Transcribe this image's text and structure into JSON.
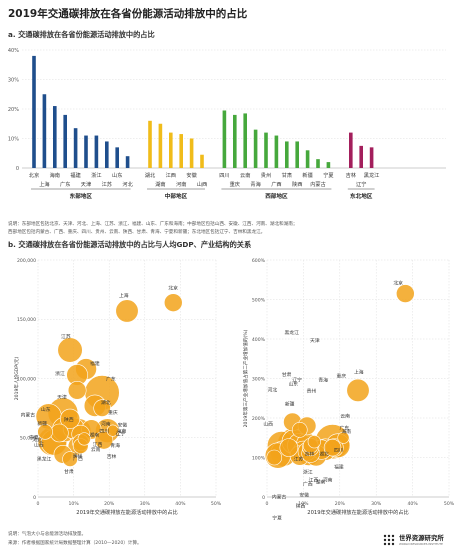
{
  "title": "2019年交通碳排放在各省份能源活动排放中的占比",
  "panel_a": {
    "subtitle": "a. 交通碳排放在各省份能源活动排放中的占比",
    "note_line1": "说明：东部地区包括北京、天津、河北、上海、江苏、浙江、福建、山东、广东和海南；中部地区包括山西、安徽、江西、河南、湖北和湖南；",
    "note_line2": "西部地区包括内蒙古、广西、重庆、四川、贵州、云南、陕西、甘肃、青海、宁夏和新疆；东北地区包括辽宁、吉林和黑龙江。"
  },
  "panel_b": {
    "subtitle": "b. 交通碳排放在各省份能源活动排放中的占比与人均GDP、产业结构的关系"
  },
  "footer": {
    "line1": "说明：气泡大小与总能源活动排放量。",
    "line2": "来源：作者根据国家统计局数据整理计算（2010—2020）计算。"
  },
  "logo": {
    "name": "世界资源研究所",
    "sub": "WORLD RESOURCES INSTITUTE"
  },
  "colors": {
    "east": "#1f4e8c",
    "central": "#f0bc1a",
    "west": "#46a83c",
    "northeast": "#a31f5c",
    "bubble": "#f2a31b",
    "bubble_stroke": "#ffffff",
    "axis": "#9a9a9a",
    "grid": "#dddddd"
  },
  "chart_data": [
    {
      "type": "bar",
      "title": "a. 交通碳排放在各省份能源活动排放中的占比",
      "ylim": [
        0,
        40
      ],
      "yticks": [
        "0",
        "10%",
        "20%",
        "30%",
        "40%"
      ],
      "grid": true,
      "groups": [
        {
          "name": "东部地区",
          "color_key": "east",
          "categories": [
            "北京",
            "上海",
            "海南",
            "广东",
            "福建",
            "天津",
            "浙江",
            "江苏",
            "山东",
            "河北"
          ],
          "values": [
            38,
            25,
            21,
            18,
            13.5,
            11,
            11,
            9,
            7,
            4
          ]
        },
        {
          "name": "中部地区",
          "color_key": "central",
          "categories": [
            "湖北",
            "湖南",
            "江西",
            "河南",
            "安徽",
            "山西"
          ],
          "values": [
            16,
            15,
            12,
            11.5,
            10,
            4.5
          ]
        },
        {
          "name": "西部地区",
          "color_key": "west",
          "categories": [
            "四川",
            "重庆",
            "云南",
            "青海",
            "贵州",
            "广西",
            "甘肃",
            "陕西",
            "新疆",
            "内蒙古",
            "宁夏"
          ],
          "values": [
            19.5,
            18,
            18.5,
            13,
            12,
            11,
            9,
            9,
            6,
            3,
            2
          ]
        },
        {
          "name": "东北地区",
          "color_key": "northeast",
          "categories": [
            "吉林",
            "辽宁",
            "黑龙江"
          ],
          "values": [
            12,
            7.5,
            7
          ]
        }
      ]
    },
    {
      "type": "scatter",
      "xlabel": "2019年交通碳排放在能源活动排放中的占比",
      "ylabel": "2019年人均GDP(元)",
      "xlim": [
        0,
        50
      ],
      "ylim": [
        0,
        200000
      ],
      "xticks": [
        "0",
        "10%",
        "20%",
        "30%",
        "40%",
        "50%"
      ],
      "yticks": [
        "0",
        "50,000",
        "100,000",
        "150,000",
        "200,000"
      ],
      "points": [
        {
          "label": "北京",
          "x": 38,
          "y": 164000,
          "size": 0.4
        },
        {
          "label": "上海",
          "x": 25,
          "y": 157000,
          "size": 0.55
        },
        {
          "label": "江苏",
          "x": 9,
          "y": 124000,
          "size": 0.62
        },
        {
          "label": "福建",
          "x": 13.5,
          "y": 108000,
          "size": 0.5
        },
        {
          "label": "广东",
          "x": 18,
          "y": 88000,
          "size": 0.95
        },
        {
          "label": "浙江",
          "x": 11,
          "y": 103000,
          "size": 0.5
        },
        {
          "label": "天津",
          "x": 11,
          "y": 90000,
          "size": 0.4
        },
        {
          "label": "山东",
          "x": 7,
          "y": 71000,
          "size": 0.8
        },
        {
          "label": "湖北",
          "x": 16,
          "y": 77000,
          "size": 0.52
        },
        {
          "label": "重庆",
          "x": 18,
          "y": 75000,
          "size": 0.36
        },
        {
          "label": "内蒙古",
          "x": 3,
          "y": 68000,
          "size": 0.65
        },
        {
          "label": "陕西",
          "x": 9,
          "y": 66000,
          "size": 0.45
        },
        {
          "label": "河南",
          "x": 11.5,
          "y": 56000,
          "size": 0.6
        },
        {
          "label": "湖南",
          "x": 15,
          "y": 57000,
          "size": 0.45
        },
        {
          "label": "海南",
          "x": 21,
          "y": 56000,
          "size": 0.18
        },
        {
          "label": "四川",
          "x": 19.5,
          "y": 56000,
          "size": 0.6
        },
        {
          "label": "安徽",
          "x": 10,
          "y": 58000,
          "size": 0.5
        },
        {
          "label": "宁夏",
          "x": 2,
          "y": 55000,
          "size": 0.3
        },
        {
          "label": "江西",
          "x": 12,
          "y": 53000,
          "size": 0.4
        },
        {
          "label": "新疆",
          "x": 6,
          "y": 54000,
          "size": 0.4
        },
        {
          "label": "青海",
          "x": 13,
          "y": 49000,
          "size": 0.22
        },
        {
          "label": "辽宁",
          "x": 7.5,
          "y": 57000,
          "size": 0.62
        },
        {
          "label": "云南",
          "x": 18.5,
          "y": 48000,
          "size": 0.4
        },
        {
          "label": "山西",
          "x": 4.5,
          "y": 46000,
          "size": 0.65
        },
        {
          "label": "河北",
          "x": 4,
          "y": 47000,
          "size": 0.75
        },
        {
          "label": "贵州",
          "x": 12,
          "y": 46000,
          "size": 0.35
        },
        {
          "label": "广西",
          "x": 11,
          "y": 43000,
          "size": 0.4
        },
        {
          "label": "黑龙江",
          "x": 7,
          "y": 36000,
          "size": 0.4
        },
        {
          "label": "吉林",
          "x": 12,
          "y": 43000,
          "size": 0.3
        },
        {
          "label": "甘肃",
          "x": 9,
          "y": 32000,
          "size": 0.3
        }
      ]
    },
    {
      "type": "scatter",
      "xlabel": "2019年交通碳排放在能源活动排放中的占比",
      "ylabel": "2019年第三产业增加值占第二产业增加值的(%)",
      "xlim": [
        0,
        50
      ],
      "ylim": [
        0,
        600
      ],
      "xticks": [
        "0",
        "10%",
        "20%",
        "30%",
        "40%",
        "50%"
      ],
      "yticks": [
        "0",
        "100%",
        "200%",
        "300%",
        "400%",
        "500%",
        "600%"
      ],
      "points": [
        {
          "label": "北京",
          "x": 38,
          "y": 515,
          "size": 0.4
        },
        {
          "label": "上海",
          "x": 25,
          "y": 270,
          "size": 0.55
        },
        {
          "label": "海南",
          "x": 21,
          "y": 150,
          "size": 0.18
        },
        {
          "label": "黑龙江",
          "x": 7,
          "y": 190,
          "size": 0.4
        },
        {
          "label": "天津",
          "x": 11,
          "y": 180,
          "size": 0.4
        },
        {
          "label": "广东",
          "x": 18,
          "y": 140,
          "size": 0.95
        },
        {
          "label": "甘肃",
          "x": 9,
          "y": 170,
          "size": 0.3
        },
        {
          "label": "四川",
          "x": 19.5,
          "y": 130,
          "size": 0.6
        },
        {
          "label": "湖北",
          "x": 16,
          "y": 120,
          "size": 0.52
        },
        {
          "label": "青海",
          "x": 13,
          "y": 140,
          "size": 0.22
        },
        {
          "label": "浙江",
          "x": 11,
          "y": 135,
          "size": 0.5
        },
        {
          "label": "重庆",
          "x": 18,
          "y": 125,
          "size": 0.36
        },
        {
          "label": "辽宁",
          "x": 7.5,
          "y": 140,
          "size": 0.62
        },
        {
          "label": "山东",
          "x": 7,
          "y": 135,
          "size": 0.8
        },
        {
          "label": "江苏",
          "x": 9,
          "y": 130,
          "size": 0.62
        },
        {
          "label": "吉林",
          "x": 12,
          "y": 130,
          "size": 0.3
        },
        {
          "label": "河北",
          "x": 4,
          "y": 130,
          "size": 0.75
        },
        {
          "label": "贵州",
          "x": 12,
          "y": 125,
          "size": 0.35
        },
        {
          "label": "云南",
          "x": 18.5,
          "y": 125,
          "size": 0.4
        },
        {
          "label": "湖南",
          "x": 15,
          "y": 120,
          "size": 0.45
        },
        {
          "label": "新疆",
          "x": 6,
          "y": 125,
          "size": 0.4
        },
        {
          "label": "宁夏",
          "x": 2,
          "y": 100,
          "size": 0.3
        },
        {
          "label": "山西",
          "x": 4.5,
          "y": 110,
          "size": 0.65
        },
        {
          "label": "广西",
          "x": 11,
          "y": 115,
          "size": 0.4
        },
        {
          "label": "内蒙古",
          "x": 3,
          "y": 105,
          "size": 0.65
        },
        {
          "label": "安徽",
          "x": 10,
          "y": 115,
          "size": 0.5
        },
        {
          "label": "江西",
          "x": 12,
          "y": 110,
          "size": 0.4
        },
        {
          "label": "河南",
          "x": 11.5,
          "y": 110,
          "size": 0.6
        },
        {
          "label": "福建",
          "x": 13.5,
          "y": 105,
          "size": 0.5
        },
        {
          "label": "陕西",
          "x": 9,
          "y": 105,
          "size": 0.45
        }
      ]
    }
  ]
}
